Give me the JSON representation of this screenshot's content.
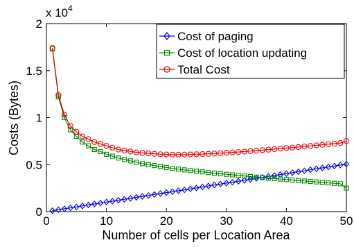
{
  "chart_data": {
    "type": "line",
    "title": "",
    "xlabel": "Number of cells per Location Area",
    "ylabel": "Costs (Bytes)",
    "y_multiplier": "x 10",
    "y_multiplier_exponent": "4",
    "xlim": [
      0,
      50
    ],
    "ylim": [
      0,
      20000
    ],
    "x_ticks": [
      "0",
      "10",
      "20",
      "30",
      "40",
      "50"
    ],
    "y_ticks": [
      "0",
      "0.5",
      "1",
      "1.5",
      "2"
    ],
    "legend_position": "top-right",
    "grid": false,
    "x": [
      1,
      2,
      3,
      4,
      5,
      6,
      7,
      8,
      9,
      10,
      11,
      12,
      13,
      14,
      15,
      16,
      17,
      18,
      19,
      20,
      21,
      22,
      23,
      24,
      25,
      26,
      27,
      28,
      29,
      30,
      31,
      32,
      33,
      34,
      35,
      36,
      37,
      38,
      39,
      40,
      41,
      42,
      43,
      44,
      45,
      46,
      47,
      48,
      49,
      50
    ],
    "series": [
      {
        "name": "Cost of paging",
        "color": "#0000ee",
        "marker": "diamond",
        "values": [
          100,
          200,
          300,
          400,
          500,
          610,
          710,
          810,
          910,
          1010,
          1110,
          1210,
          1310,
          1410,
          1520,
          1620,
          1720,
          1820,
          1920,
          2020,
          2120,
          2220,
          2320,
          2420,
          2520,
          2630,
          2730,
          2830,
          2930,
          3030,
          3130,
          3230,
          3330,
          3430,
          3540,
          3640,
          3740,
          3840,
          3940,
          4040,
          4140,
          4240,
          4340,
          4450,
          4550,
          4650,
          4750,
          4850,
          4950,
          5050
        ]
      },
      {
        "name": "Cost of location updating",
        "color": "#008800",
        "marker": "square",
        "values": [
          17300,
          12200,
          10000,
          8700,
          8000,
          7400,
          7000,
          6600,
          6400,
          6100,
          5900,
          5700,
          5550,
          5400,
          5250,
          5100,
          5000,
          4900,
          4800,
          4700,
          4600,
          4520,
          4440,
          4370,
          4300,
          4230,
          4160,
          4090,
          4030,
          3970,
          3910,
          3850,
          3790,
          3730,
          3670,
          3610,
          3560,
          3510,
          3460,
          3410,
          3360,
          3310,
          3260,
          3210,
          3160,
          3110,
          3060,
          3010,
          2960,
          2500
        ]
      },
      {
        "name": "Total Cost",
        "color": "#ee0000",
        "marker": "circle",
        "values": [
          17400,
          12400,
          10300,
          9100,
          8500,
          8000,
          7700,
          7400,
          7200,
          7000,
          6800,
          6600,
          6500,
          6400,
          6300,
          6250,
          6200,
          6150,
          6100,
          6080,
          6060,
          6060,
          6070,
          6080,
          6100,
          6120,
          6150,
          6180,
          6220,
          6260,
          6300,
          6340,
          6390,
          6440,
          6490,
          6540,
          6590,
          6650,
          6700,
          6760,
          6810,
          6870,
          6930,
          6990,
          7050,
          7110,
          7170,
          7230,
          7300,
          7500
        ]
      }
    ]
  }
}
